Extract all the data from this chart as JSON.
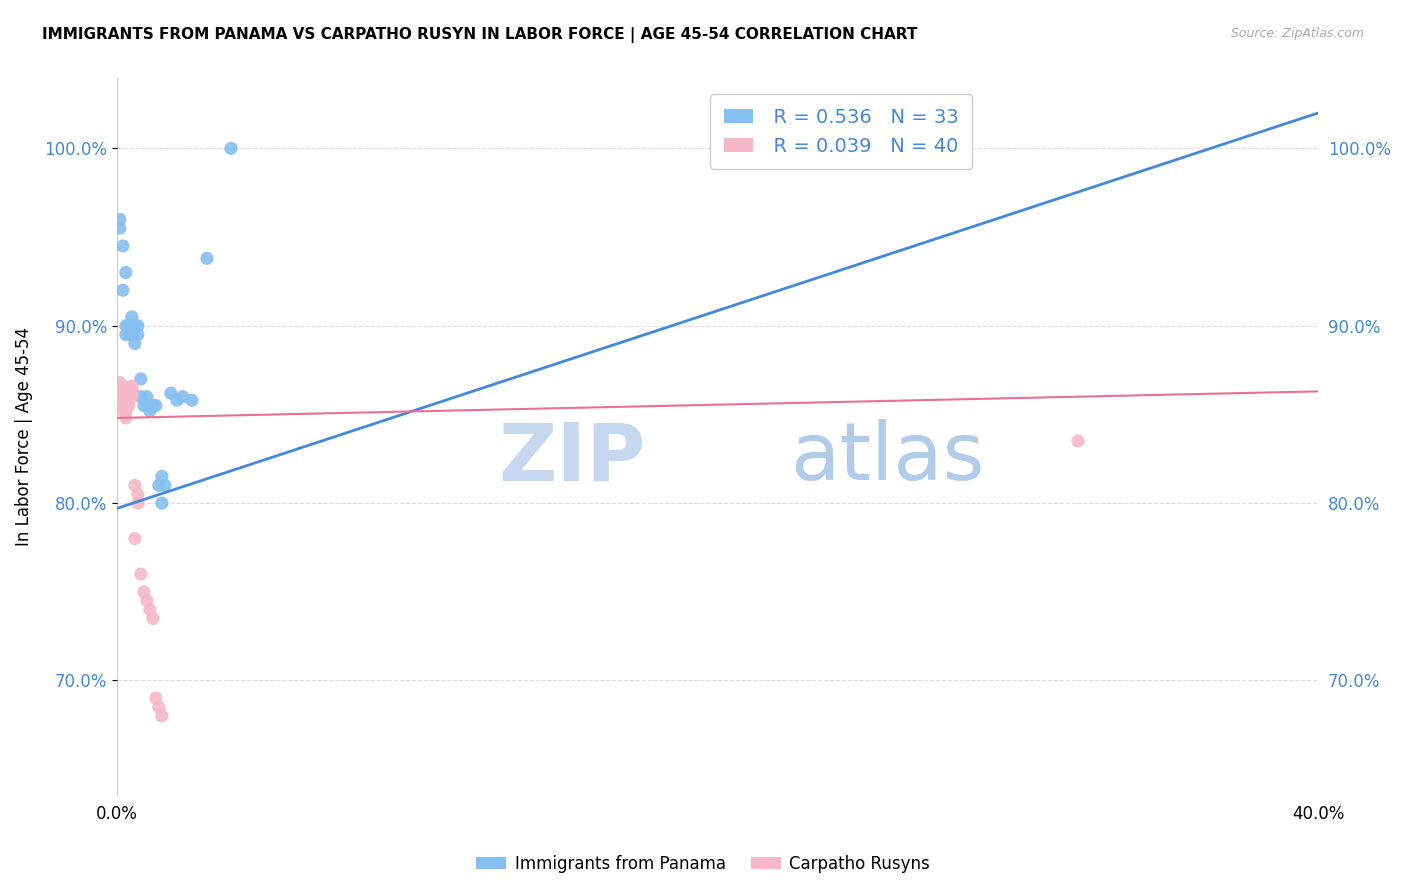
{
  "title": "IMMIGRANTS FROM PANAMA VS CARPATHO RUSYN IN LABOR FORCE | AGE 45-54 CORRELATION CHART",
  "source": "Source: ZipAtlas.com",
  "ylabel": "In Labor Force | Age 45-54",
  "ytick_vals": [
    0.7,
    0.8,
    0.9,
    1.0
  ],
  "ytick_labels": [
    "70.0%",
    "80.0%",
    "90.0%",
    "100.0%"
  ],
  "xmin": 0.0,
  "xmax": 0.4,
  "ymin": 0.635,
  "ymax": 1.04,
  "legend_blue_r": "R = 0.536",
  "legend_blue_n": "N = 33",
  "legend_pink_r": "R = 0.039",
  "legend_pink_n": "N = 40",
  "legend_blue_label": "Immigrants from Panama",
  "legend_pink_label": "Carpatho Rusyns",
  "blue_color": "#85bef0",
  "pink_color": "#f5b8c8",
  "trendline_blue_color": "#4488dd",
  "trendline_pink_color": "#e87090",
  "watermark_zip_color": "#c5d8f0",
  "watermark_atlas_color": "#b0cce8",
  "background_color": "#ffffff",
  "grid_color": "#dddddd",
  "blue_scatter_x": [
    0.001,
    0.001,
    0.002,
    0.002,
    0.003,
    0.003,
    0.003,
    0.004,
    0.004,
    0.005,
    0.005,
    0.006,
    0.006,
    0.007,
    0.007,
    0.008,
    0.008,
    0.009,
    0.01,
    0.01,
    0.011,
    0.012,
    0.013,
    0.014,
    0.015,
    0.015,
    0.016,
    0.018,
    0.02,
    0.022,
    0.025,
    0.03,
    0.038
  ],
  "blue_scatter_y": [
    0.955,
    0.96,
    0.92,
    0.945,
    0.93,
    0.9,
    0.895,
    0.895,
    0.9,
    0.905,
    0.895,
    0.9,
    0.89,
    0.9,
    0.895,
    0.87,
    0.86,
    0.855,
    0.855,
    0.86,
    0.852,
    0.855,
    0.855,
    0.81,
    0.815,
    0.8,
    0.81,
    0.862,
    0.858,
    0.86,
    0.858,
    0.938,
    1.0
  ],
  "pink_scatter_x": [
    0.001,
    0.001,
    0.001,
    0.001,
    0.001,
    0.002,
    0.002,
    0.002,
    0.002,
    0.002,
    0.002,
    0.002,
    0.003,
    0.003,
    0.003,
    0.003,
    0.003,
    0.003,
    0.003,
    0.004,
    0.004,
    0.004,
    0.004,
    0.005,
    0.005,
    0.005,
    0.005,
    0.006,
    0.006,
    0.007,
    0.007,
    0.008,
    0.009,
    0.01,
    0.011,
    0.012,
    0.013,
    0.014,
    0.015,
    0.32
  ],
  "pink_scatter_y": [
    0.855,
    0.86,
    0.862,
    0.865,
    0.868,
    0.852,
    0.855,
    0.858,
    0.86,
    0.862,
    0.864,
    0.866,
    0.848,
    0.851,
    0.854,
    0.856,
    0.858,
    0.86,
    0.862,
    0.855,
    0.858,
    0.86,
    0.863,
    0.86,
    0.862,
    0.864,
    0.866,
    0.78,
    0.81,
    0.8,
    0.805,
    0.76,
    0.75,
    0.745,
    0.74,
    0.735,
    0.69,
    0.685,
    0.68,
    0.835
  ],
  "blue_trend_x": [
    0.0,
    0.4
  ],
  "blue_trend_y": [
    0.797,
    1.02
  ],
  "pink_trend_x": [
    0.0,
    0.4
  ],
  "pink_trend_y": [
    0.848,
    0.863
  ]
}
